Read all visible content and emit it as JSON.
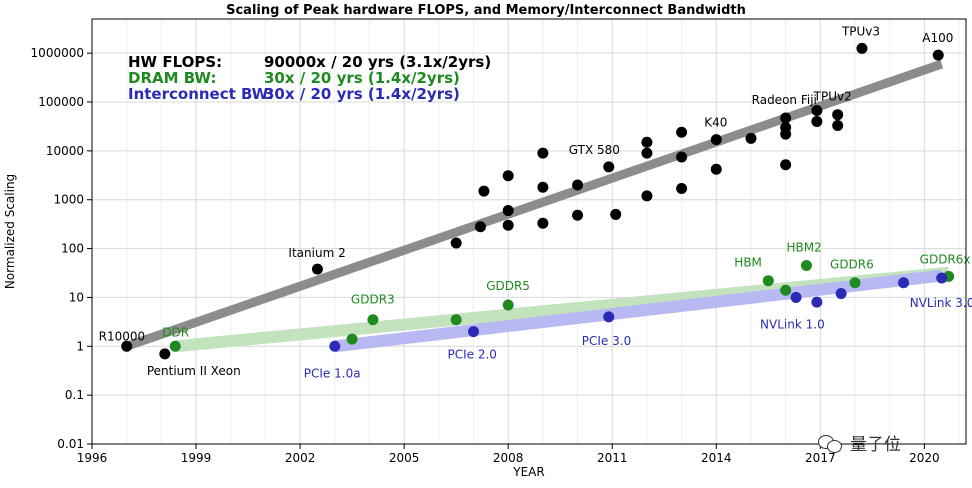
{
  "chart_data": {
    "type": "scatter",
    "title": "Scaling of Peak hardware FLOPS, and Memory/Interconnect Bandwidth",
    "xlabel": "YEAR",
    "ylabel": "Normalized Scaling",
    "xlim": [
      1996,
      2021.2
    ],
    "ylim": [
      0.01,
      5000000
    ],
    "y_scale": "log",
    "grid": true,
    "x_ticks": [
      1996,
      1999,
      2002,
      2005,
      2008,
      2011,
      2014,
      2017,
      2020
    ],
    "x_tick_labels": [
      "1996",
      "1999",
      "2002",
      "2005",
      "2008",
      "2011",
      "2014",
      "2017",
      "2020"
    ],
    "y_ticks": [
      0.01,
      0.1,
      1,
      10,
      100,
      1000,
      10000,
      100000,
      1000000
    ],
    "y_tick_labels": [
      "0.01",
      "0.1",
      "1",
      "10",
      "100",
      "1000",
      "10000",
      "100000",
      "1000000"
    ],
    "legend_text": [
      {
        "name": "HW FLOPS:",
        "value": "90000x / 20 yrs (3.1x/2yrs)",
        "color": "#000000"
      },
      {
        "name": "DRAM BW:",
        "value": "30x / 20 yrs (1.4x/2yrs)",
        "color": "#1f8a1f"
      },
      {
        "name": "Interconnect BW:",
        "value": "30x / 20 yrs (1.4x/2yrs)",
        "color": "#2b2bb5"
      }
    ],
    "series": [
      {
        "name": "HW FLOPS",
        "color": "#000000",
        "trend_color": "#8c8c8c",
        "trend": [
          [
            1997,
            1
          ],
          [
            2020.5,
            600000
          ]
        ],
        "points": [
          [
            1997,
            1
          ],
          [
            1998.1,
            0.7
          ],
          [
            2002.5,
            38
          ],
          [
            2006.5,
            130
          ],
          [
            2007.2,
            280
          ],
          [
            2007.3,
            1500
          ],
          [
            2008,
            300
          ],
          [
            2008,
            600
          ],
          [
            2008,
            3100
          ],
          [
            2009,
            330
          ],
          [
            2009,
            1800
          ],
          [
            2009,
            9000
          ],
          [
            2010,
            480
          ],
          [
            2010,
            2000
          ],
          [
            2010.9,
            4700
          ],
          [
            2011.1,
            500
          ],
          [
            2012,
            1200
          ],
          [
            2012,
            9000
          ],
          [
            2012,
            15000
          ],
          [
            2013,
            1700
          ],
          [
            2013,
            7500
          ],
          [
            2013,
            24000
          ],
          [
            2014,
            4200
          ],
          [
            2014,
            17000
          ],
          [
            2015,
            18000
          ],
          [
            2016,
            5200
          ],
          [
            2016,
            22000
          ],
          [
            2016,
            30000
          ],
          [
            2016,
            47000
          ],
          [
            2016.9,
            40000
          ],
          [
            2016.9,
            67000
          ],
          [
            2017.5,
            33000
          ],
          [
            2017.5,
            55000
          ],
          [
            2018.2,
            1250000
          ],
          [
            2020.4,
            910000
          ]
        ],
        "labels": [
          {
            "text": "R10000",
            "x": 1997,
            "y": 1
          },
          {
            "text": "Pentium II Xeon",
            "x": 1998.1,
            "y": 0.7
          },
          {
            "text": "Itanium 2",
            "x": 2002.5,
            "y": 38
          },
          {
            "text": "GTX 580",
            "x": 2010.9,
            "y": 4700
          },
          {
            "text": "K40",
            "x": 2014,
            "y": 17000
          },
          {
            "text": "Radeon Fiji",
            "x": 2016,
            "y": 47000
          },
          {
            "text": "TPUv2",
            "x": 2017.5,
            "y": 55000
          },
          {
            "text": "TPUv3",
            "x": 2018.2,
            "y": 1250000
          },
          {
            "text": "A100",
            "x": 2020.4,
            "y": 910000
          }
        ]
      },
      {
        "name": "DRAM BW",
        "color": "#1f8a1f",
        "trend_color": "#c3e3bf",
        "trend": [
          [
            1998.4,
            1
          ],
          [
            2020.7,
            32
          ]
        ],
        "points": [
          [
            1998.4,
            1
          ],
          [
            2003.5,
            1.4
          ],
          [
            2004.1,
            3.5
          ],
          [
            2006.5,
            3.5
          ],
          [
            2008,
            7
          ],
          [
            2015.5,
            22
          ],
          [
            2016,
            14
          ],
          [
            2016.6,
            45
          ],
          [
            2018,
            20
          ],
          [
            2020.7,
            27
          ]
        ],
        "labels": [
          {
            "text": "DDR",
            "x": 1998.4,
            "y": 1
          },
          {
            "text": "GDDR3",
            "x": 2004.1,
            "y": 3.5
          },
          {
            "text": "GDDR5",
            "x": 2008,
            "y": 7
          },
          {
            "text": "HBM",
            "x": 2015.5,
            "y": 22
          },
          {
            "text": "HBM2",
            "x": 2016.6,
            "y": 45
          },
          {
            "text": "GDDR6",
            "x": 2018,
            "y": 20
          },
          {
            "text": "GDDR6x",
            "x": 2020.7,
            "y": 27
          }
        ]
      },
      {
        "name": "Interconnect BW",
        "color": "#2b2bb5",
        "trend_color": "#b8b8f2",
        "trend": [
          [
            2003,
            1
          ],
          [
            2020.5,
            28
          ]
        ],
        "points": [
          [
            2003,
            1
          ],
          [
            2007,
            2
          ],
          [
            2010.9,
            4
          ],
          [
            2016.3,
            10
          ],
          [
            2016.9,
            8
          ],
          [
            2017.6,
            12
          ],
          [
            2019.4,
            20
          ],
          [
            2020.5,
            25
          ]
        ],
        "labels": [
          {
            "text": "PCIe 1.0a",
            "x": 2003,
            "y": 1
          },
          {
            "text": "PCIe 2.0",
            "x": 2007,
            "y": 2
          },
          {
            "text": "PCIe 3.0",
            "x": 2010.9,
            "y": 4
          },
          {
            "text": "NVLink 1.0",
            "x": 2016.3,
            "y": 10
          },
          {
            "text": "NVLink 3.0",
            "x": 2020.5,
            "y": 25
          }
        ]
      }
    ]
  },
  "watermark": {
    "icon": "wechat-icon",
    "text": "量子位"
  }
}
